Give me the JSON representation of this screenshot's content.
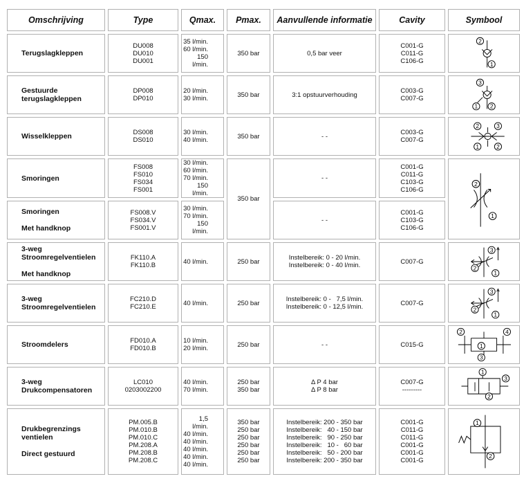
{
  "table": {
    "header": [
      "Omschrijving",
      "Type",
      "Qmax.",
      "Pmax.",
      "Aanvullende informatie",
      "Cavity",
      "Symbool"
    ],
    "rows": [
      {
        "omschrijving": [
          [
            "Terugslagkleppen"
          ]
        ],
        "type": [
          "DU008",
          "DU010",
          "DU001"
        ],
        "qmax": [
          "35 l/min.",
          "60 l/min.",
          "150 l/min."
        ],
        "pmax": [
          "350 bar"
        ],
        "info": [
          "0,5 bar veer"
        ],
        "cavity": [
          "C001-G",
          "C011-G",
          "C106-G"
        ],
        "symbol": [
          "2",
          "1"
        ]
      },
      {
        "omschrijving": [
          [
            "Gestuurde",
            "terugslagkleppen"
          ]
        ],
        "type": [
          "DP008",
          "DP010"
        ],
        "qmax": [
          "20 l/min.",
          "30 l/min."
        ],
        "pmax": [
          "350 bar"
        ],
        "info": [
          "3:1 opstuurverhouding"
        ],
        "cavity": [
          "C003-G",
          "C007-G"
        ],
        "symbol": [
          "3",
          "1",
          "2"
        ]
      },
      {
        "omschrijving": [
          [
            "Wisselkleppen"
          ]
        ],
        "type": [
          "DS008",
          "DS010"
        ],
        "qmax": [
          "30 l/min.",
          "40 l/min."
        ],
        "pmax": [
          "350 bar"
        ],
        "info": [
          "- -"
        ],
        "cavity": [
          "C003-G",
          "C007-G"
        ],
        "symbol": [
          "2",
          "3",
          "1",
          "2"
        ]
      },
      {
        "omschrijving": [
          [
            "Smoringen"
          ]
        ],
        "type": [
          "FS008",
          "FS010",
          "FS034",
          "FS001"
        ],
        "qmax": [
          "30 l/min.",
          "60 l/min.",
          "70 l/min.",
          "150 l/min."
        ],
        "pmax": [
          "350 bar"
        ],
        "info": [
          "- -"
        ],
        "cavity": [
          "C001-G",
          "C011-G",
          "C103-G",
          "C106-G"
        ],
        "symbol": [
          "2",
          "1"
        ]
      },
      {
        "omschrijving": [
          [
            "Smoringen"
          ],
          [
            "Met handknop"
          ]
        ],
        "type": [
          "FS008.V",
          "FS034.V",
          "FS001.V"
        ],
        "qmax": [
          "30 l/min.",
          "70 l/min.",
          "150 l/min."
        ],
        "info": [
          "- -"
        ],
        "cavity": [
          "C001-G",
          "C103-G",
          "C106-G"
        ]
      },
      {
        "omschrijving": [
          [
            "3-weg",
            "Stroomregelventielen"
          ],
          [
            "Met handknop"
          ]
        ],
        "type": [
          "FK110.A",
          "FK110.B"
        ],
        "qmax": [
          "40 l/min."
        ],
        "pmax": [
          "250 bar"
        ],
        "info": [
          "Instelbereik: 0 - 20 l/min.",
          "Instelbereik: 0 - 40 l/min."
        ],
        "cavity": [
          "C007-G"
        ],
        "symbol": [
          "3",
          "2",
          "1"
        ]
      },
      {
        "omschrijving": [
          [
            "3-weg",
            "Stroomregelventielen"
          ]
        ],
        "type": [
          "FC210.D",
          "FC210.E"
        ],
        "qmax": [
          "40 l/min."
        ],
        "pmax": [
          "250 bar"
        ],
        "info": [
          "Instelbereik: 0 -   7,5 l/min.",
          "Instelbereik: 0 - 12,5 l/min."
        ],
        "cavity": [
          "C007-G"
        ],
        "symbol": [
          "3",
          "2",
          "1"
        ]
      },
      {
        "omschrijving": [
          [
            "Stroomdelers"
          ]
        ],
        "type": [
          "FD010.A",
          "FD010.B"
        ],
        "qmax": [
          "10 l/min.",
          "20 l/min."
        ],
        "pmax": [
          "250 bar"
        ],
        "info": [
          "- -"
        ],
        "cavity": [
          "C015-G"
        ],
        "symbol": [
          "2",
          "4",
          "1",
          "3"
        ]
      },
      {
        "omschrijving": [
          [
            "3-weg",
            "Drukcompensatoren"
          ]
        ],
        "type": [
          "LC010",
          "0203002200"
        ],
        "qmax": [
          "40 l/min.",
          "70 l/min."
        ],
        "pmax": [
          "250 bar",
          "350 bar"
        ],
        "info": [
          "Δ P 4 bar",
          "Δ P 8 bar"
        ],
        "cavity": [
          "C007-G",
          "---------"
        ],
        "symbol": [
          "1",
          "3",
          "2"
        ]
      },
      {
        "omschrijving": [
          [
            "Drukbegrenzings",
            "ventielen"
          ],
          [
            "Direct gestuurd"
          ]
        ],
        "type": [
          "PM.005.B",
          "PM.010.B",
          "PM.010.C",
          "PM.208.A",
          "PM.208.B",
          "PM.208.C"
        ],
        "qmax": [
          "1,5 l/min.",
          "40 l/min.",
          "40 l/min.",
          "40 l/min.",
          "40 l/min.",
          "40 l/min."
        ],
        "pmax": [
          "350 bar",
          "250 bar",
          "250 bar",
          "250 bar",
          "250 bar",
          "250 bar"
        ],
        "info": [
          "Instelbereik: 200 - 350 bar",
          "Instelbereik:   40 - 150 bar",
          "Instelbereik:   90 - 250 bar",
          "Instelbereik:   10 -   60 bar",
          "Instelbereik:   50 - 200 bar",
          "Instelbereik: 200 - 350 bar"
        ],
        "cavity": [
          "C001-G",
          "C011-G",
          "C011-G",
          "C001-G",
          "C001-G",
          "C001-G"
        ],
        "symbol": [
          "1",
          "2"
        ]
      }
    ]
  }
}
